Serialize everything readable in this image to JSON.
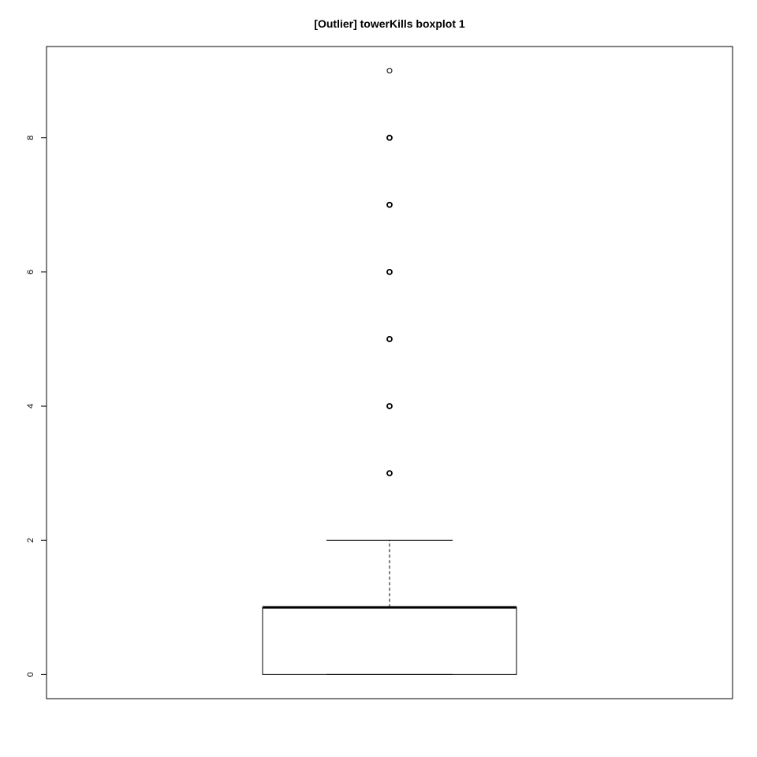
{
  "chart_data": {
    "type": "boxplot",
    "title": "[Outlier] towerKills boxplot 1",
    "xlabel": "",
    "ylabel": "",
    "ylim": [
      -0.36,
      9.36
    ],
    "y_ticks": [
      0,
      2,
      4,
      6,
      8
    ],
    "y_tick_labels": [
      "0",
      "2",
      "4",
      "6",
      "8"
    ],
    "grid": false,
    "box": {
      "min": 0,
      "q1": 0,
      "median": 1,
      "q3": 1,
      "max": 2,
      "outliers": [
        3,
        4,
        5,
        6,
        7,
        8,
        9
      ]
    }
  }
}
